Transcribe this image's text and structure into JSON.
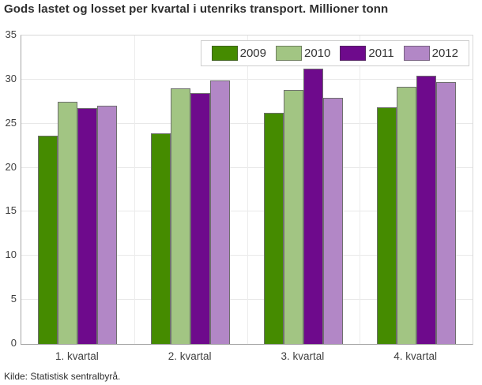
{
  "chart_data": {
    "type": "bar",
    "title": "Gods lastet og losset per kvartal i utenriks transport. Millioner tonn",
    "source": "Kilde: Statistisk sentralbyrå.",
    "categories": [
      "1. kvartal",
      "2. kvartal",
      "3. kvartal",
      "4. kvartal"
    ],
    "series": [
      {
        "name": "2009",
        "color": "#458B00",
        "values": [
          23.6,
          23.9,
          26.2,
          26.9
        ]
      },
      {
        "name": "2010",
        "color": "#A2C583",
        "values": [
          27.5,
          29.0,
          28.8,
          29.2
        ]
      },
      {
        "name": "2011",
        "color": "#6E0A8C",
        "values": [
          26.8,
          28.5,
          31.2,
          30.4
        ]
      },
      {
        "name": "2012",
        "color": "#B287C6",
        "values": [
          27.0,
          29.9,
          27.9,
          29.7
        ]
      }
    ],
    "xlabel": "",
    "ylabel": "",
    "ylim": [
      0,
      35
    ],
    "ytick_step": 5,
    "grid": true,
    "legend_position": "top-right"
  }
}
